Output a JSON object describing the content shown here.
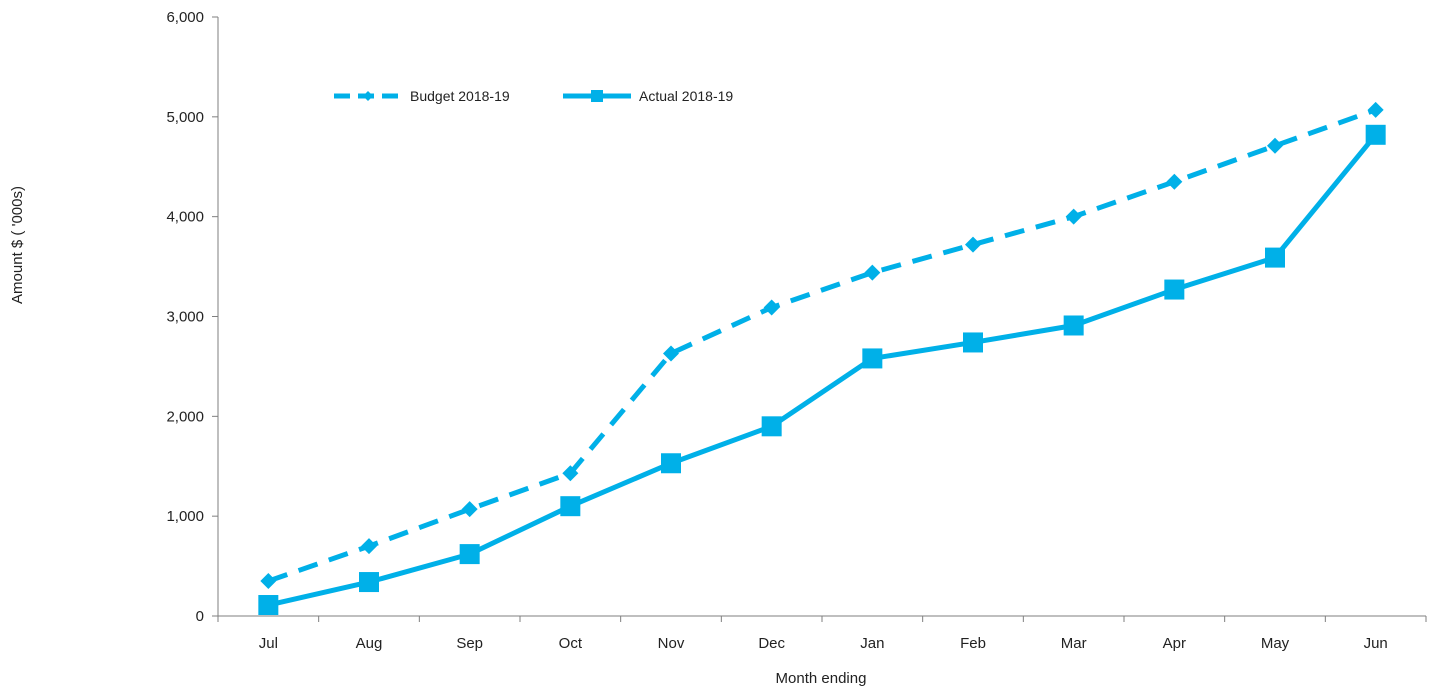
{
  "chart_data": {
    "type": "line",
    "title": "",
    "xlabel": "Month ending",
    "ylabel": "Amount $ ( '000s)",
    "categories": [
      "Jul",
      "Aug",
      "Sep",
      "Oct",
      "Nov",
      "Dec",
      "Jan",
      "Feb",
      "Mar",
      "Apr",
      "May",
      "Jun"
    ],
    "ylim": [
      0,
      6000
    ],
    "yticks": [
      0,
      1000,
      2000,
      3000,
      4000,
      5000,
      6000
    ],
    "ytick_labels": [
      "0",
      "1,000",
      "2,000",
      "3,000",
      "4,000",
      "5,000",
      "6,000"
    ],
    "grid": false,
    "legend_position": "top-left",
    "series": [
      {
        "name": "Budget 2018-19",
        "style": "dashed",
        "marker": "diamond",
        "color": "#00B0E8",
        "values": [
          350,
          700,
          1070,
          1430,
          2630,
          3090,
          3440,
          3720,
          4000,
          4350,
          4710,
          5070
        ]
      },
      {
        "name": "Actual 2018-19",
        "style": "solid",
        "marker": "square",
        "color": "#00B0E8",
        "values": [
          110,
          340,
          620,
          1100,
          1530,
          1900,
          2580,
          2740,
          2910,
          3270,
          3590,
          4820
        ]
      }
    ]
  }
}
